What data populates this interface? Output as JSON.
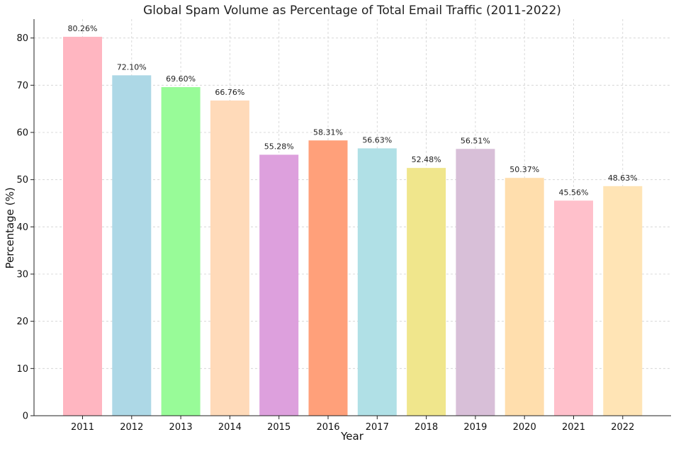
{
  "chart_data": {
    "type": "bar",
    "title": "Global Spam Volume as Percentage of Total Email Traffic (2011-2022)",
    "xlabel": "Year",
    "ylabel": "Percentage (%)",
    "categories": [
      "2011",
      "2012",
      "2013",
      "2014",
      "2015",
      "2016",
      "2017",
      "2018",
      "2019",
      "2020",
      "2021",
      "2022"
    ],
    "values": [
      80.26,
      72.1,
      69.6,
      66.76,
      55.28,
      58.31,
      56.63,
      52.48,
      56.51,
      50.37,
      45.56,
      48.63
    ],
    "data_labels": [
      "80.26%",
      "72.10%",
      "69.60%",
      "66.76%",
      "55.28%",
      "58.31%",
      "56.63%",
      "52.48%",
      "56.51%",
      "50.37%",
      "45.56%",
      "48.63%"
    ],
    "colors": [
      "#FFB6C1",
      "#ADD8E6",
      "#98FB98",
      "#FFDAB9",
      "#DDA0DD",
      "#FFA07A",
      "#B0E0E6",
      "#F0E68C",
      "#D8BFD8",
      "#FFDEAD",
      "#FFC0CB",
      "#FFE4B5"
    ],
    "ylim": [
      0,
      84
    ],
    "yticks": [
      0,
      10,
      20,
      30,
      40,
      50,
      60,
      70,
      80
    ],
    "grid": true,
    "legend": "none"
  }
}
